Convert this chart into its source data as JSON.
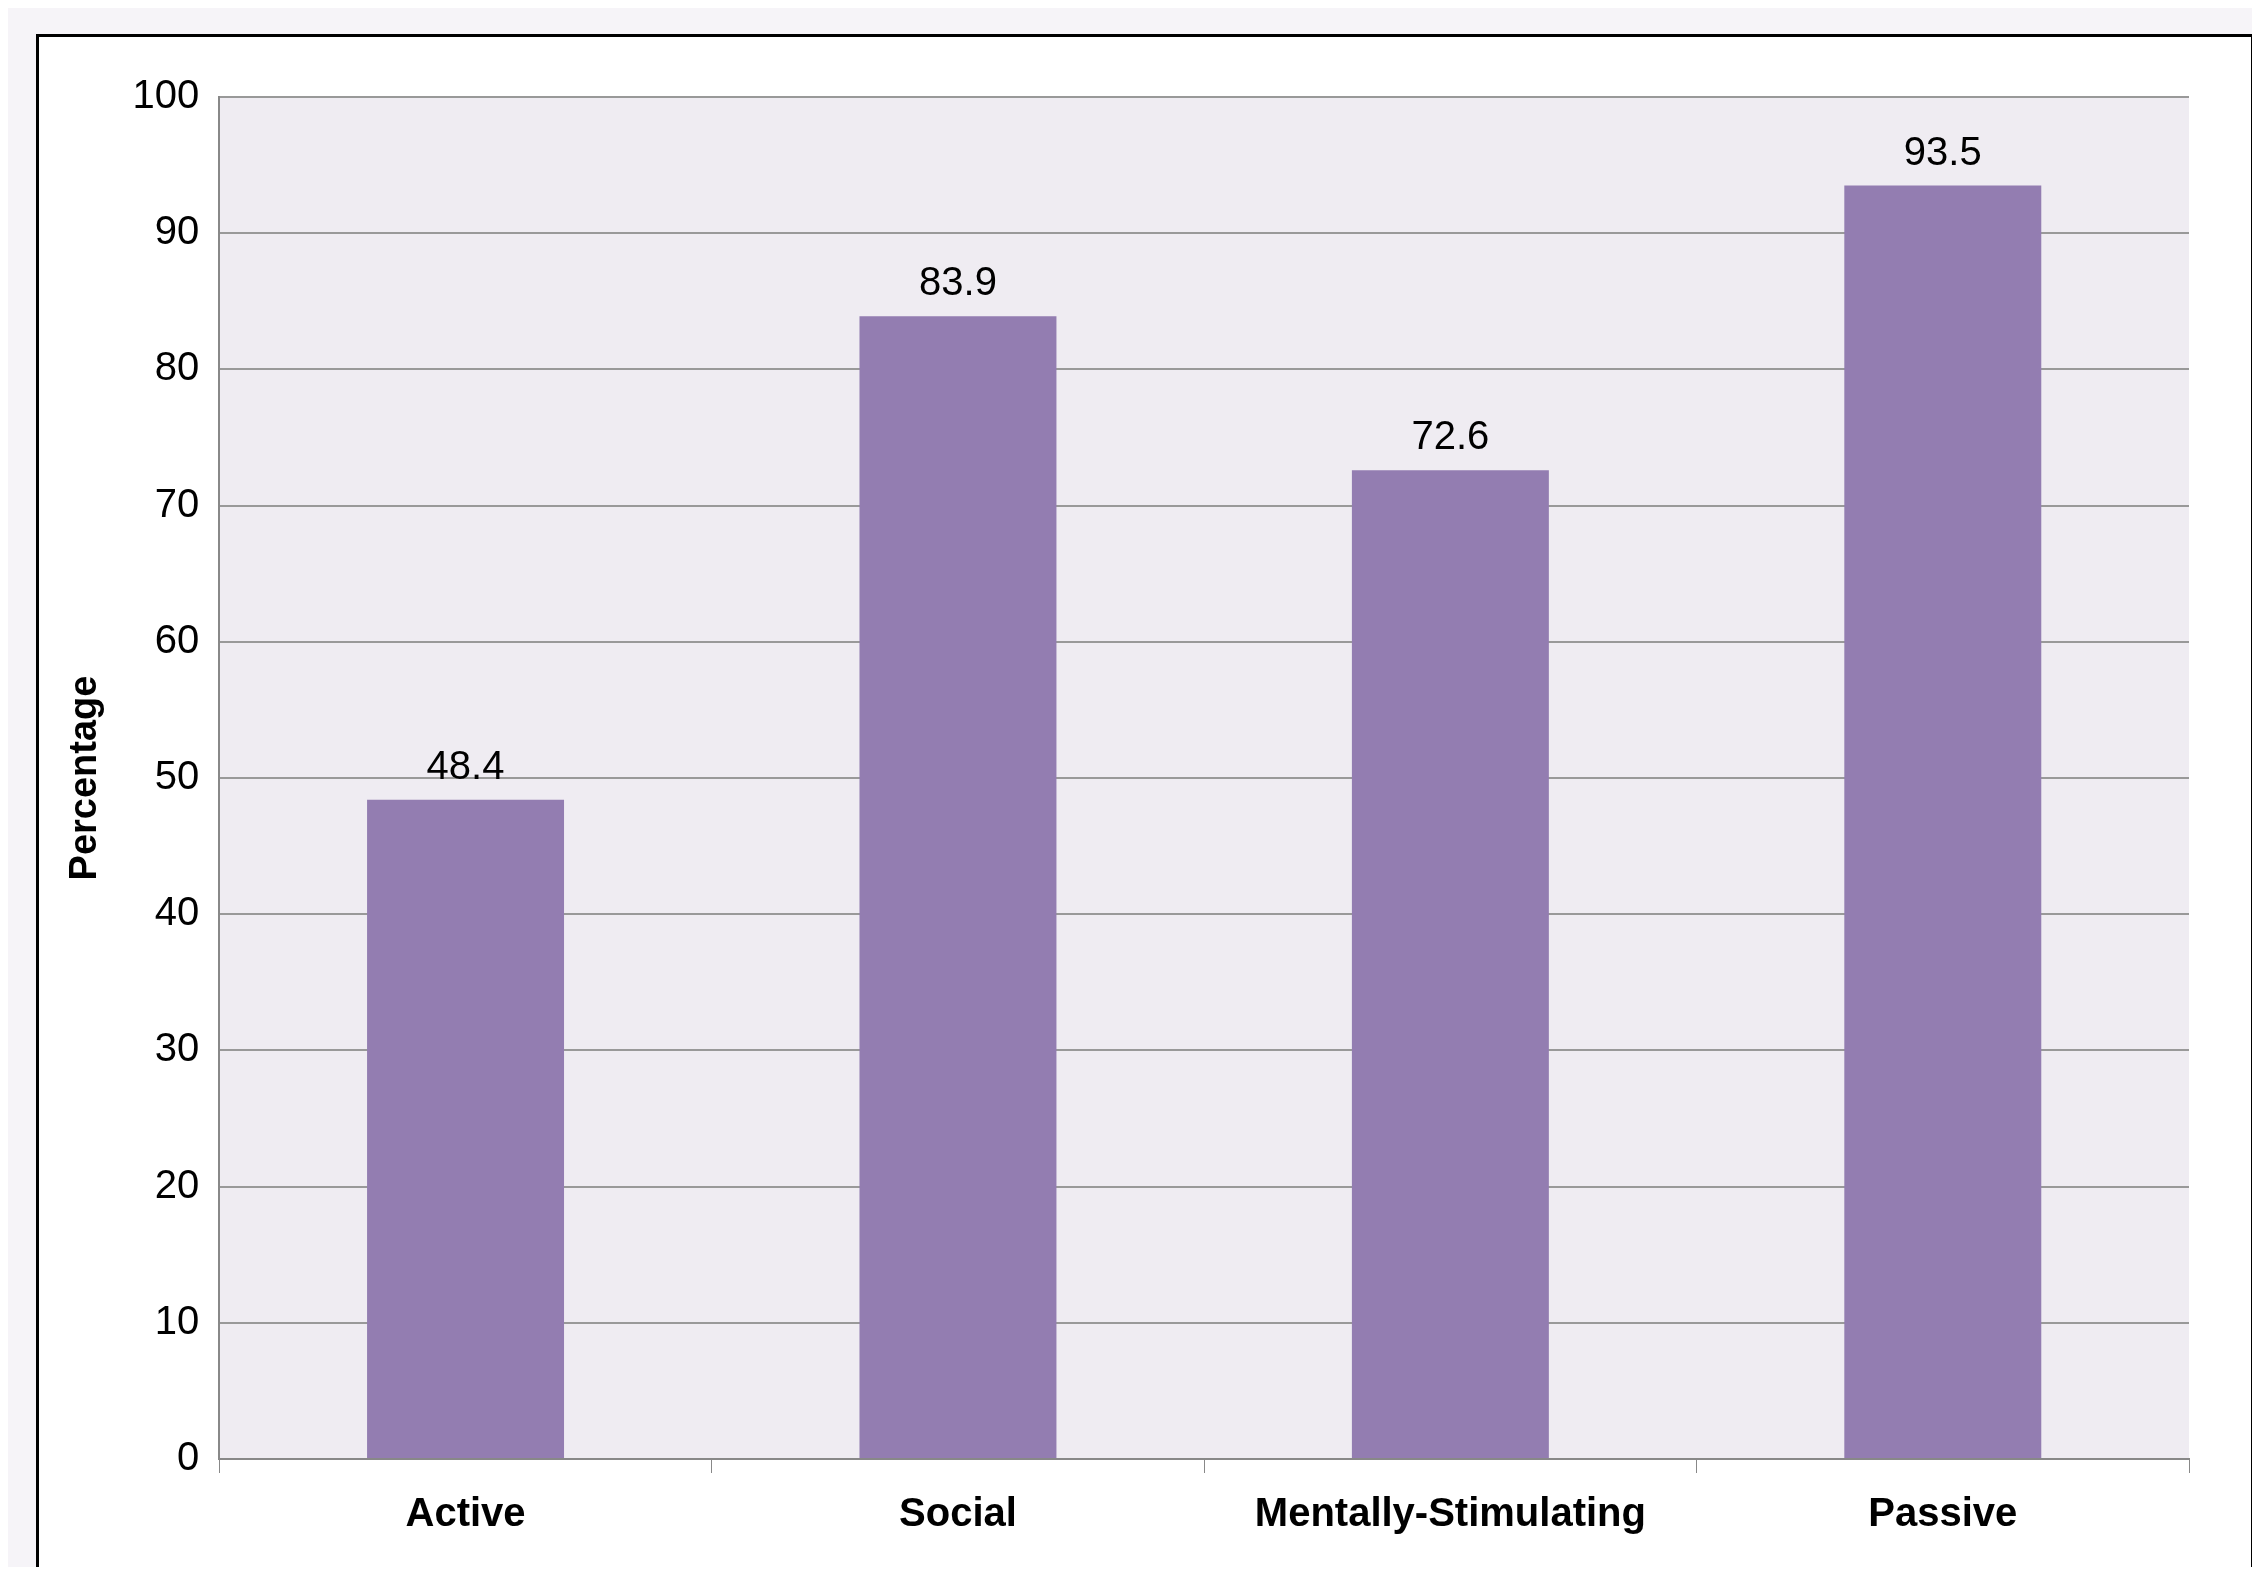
{
  "chart_data": {
    "type": "bar",
    "ylabel": "Percentage",
    "categories": [
      "Active",
      "Social",
      "Mentally-Stimulating",
      "Passive"
    ],
    "values": [
      48.4,
      83.9,
      72.6,
      93.5
    ],
    "color": "#937db1",
    "ylim": [
      0,
      100
    ],
    "yticks": [
      0,
      10,
      20,
      30,
      40,
      50,
      60,
      70,
      80,
      90,
      100
    ],
    "grid": "y",
    "data_labels": true,
    "legend": false
  }
}
